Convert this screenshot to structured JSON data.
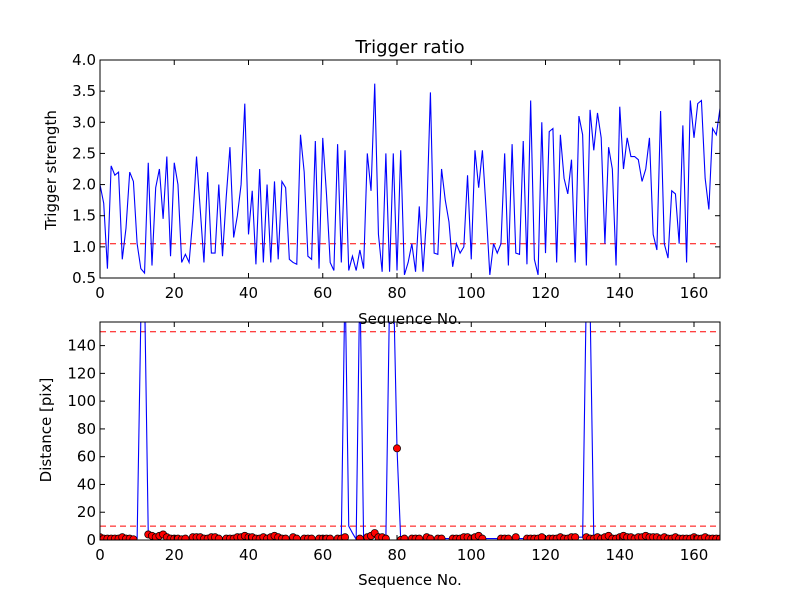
{
  "chart_data": [
    {
      "type": "line",
      "title": "Trigger ratio",
      "xlabel": "Sequence No.",
      "ylabel": "Trigger strength",
      "xlim": [
        0,
        167
      ],
      "ylim": [
        0.5,
        4.0
      ],
      "xticks": [
        0,
        20,
        40,
        60,
        80,
        100,
        120,
        140,
        160
      ],
      "yticks": [
        "0.5",
        "1.0",
        "1.5",
        "2.0",
        "2.5",
        "3.0",
        "3.5",
        "4.0"
      ],
      "grid": false,
      "line_color": "#0000ff",
      "reference_lines": [
        {
          "y": 1.05,
          "color": "#ff0000",
          "style": "dashed"
        }
      ],
      "series": [
        {
          "values": [
            2.0,
            1.7,
            0.65,
            2.3,
            2.15,
            2.2,
            0.8,
            1.3,
            2.2,
            2.05,
            1.05,
            0.65,
            0.58,
            2.35,
            0.7,
            1.95,
            2.25,
            1.45,
            2.45,
            0.85,
            2.35,
            2.0,
            0.75,
            0.88,
            0.75,
            1.45,
            2.45,
            1.6,
            0.75,
            2.2,
            0.9,
            0.9,
            2.0,
            0.85,
            1.8,
            2.6,
            1.15,
            1.5,
            2.0,
            3.3,
            1.2,
            1.9,
            0.72,
            2.25,
            0.75,
            2.0,
            0.75,
            2.05,
            0.8,
            2.05,
            1.95,
            0.8,
            0.75,
            0.72,
            2.8,
            2.2,
            0.85,
            0.8,
            2.7,
            0.65,
            2.75,
            1.85,
            0.75,
            0.62,
            2.65,
            0.75,
            2.55,
            0.62,
            0.85,
            0.62,
            0.95,
            0.65,
            2.5,
            1.9,
            3.62,
            1.2,
            0.6,
            2.5,
            0.6,
            2.5,
            0.62,
            2.55,
            0.55,
            0.75,
            1.05,
            0.6,
            1.65,
            0.6,
            1.5,
            3.48,
            0.9,
            0.88,
            2.25,
            1.75,
            1.4,
            0.68,
            1.05,
            0.9,
            1.0,
            2.15,
            0.8,
            2.55,
            1.95,
            2.55,
            1.6,
            0.55,
            1.05,
            0.9,
            1.05,
            2.5,
            0.7,
            2.65,
            0.9,
            0.88,
            2.7,
            0.72,
            3.35,
            0.8,
            0.55,
            3.0,
            0.9,
            2.85,
            2.9,
            0.75,
            2.8,
            2.1,
            1.85,
            2.4,
            0.75,
            3.1,
            2.8,
            0.7,
            3.2,
            2.55,
            3.15,
            2.75,
            1.05,
            2.6,
            2.25,
            0.7,
            3.25,
            2.25,
            2.75,
            2.45,
            2.45,
            2.4,
            2.05,
            2.25,
            2.75,
            1.2,
            0.95,
            3.18,
            1.05,
            0.82,
            1.9,
            1.85,
            1.05,
            2.95,
            0.75,
            3.35,
            2.75,
            3.3,
            3.35,
            2.1,
            1.6,
            2.9,
            2.8,
            3.22,
            3.22
          ]
        }
      ]
    },
    {
      "type": "line",
      "xlabel": "Sequence No.",
      "ylabel": "Distance [pix]",
      "xlim": [
        0,
        167
      ],
      "ylim": [
        0,
        157
      ],
      "xticks": [
        0,
        20,
        40,
        60,
        80,
        100,
        120,
        140,
        160
      ],
      "yticks": [
        0,
        20,
        40,
        60,
        80,
        100,
        120,
        140
      ],
      "grid": false,
      "line_color": "#0000ff",
      "marker_color": "#ff0000",
      "reference_lines": [
        {
          "y": 150,
          "color": "#ff0000",
          "style": "dashed"
        },
        {
          "y": 10,
          "color": "#ff0000",
          "style": "dashed"
        }
      ],
      "series": [
        {
          "values": [
            2,
            1,
            1,
            1,
            1,
            1,
            2,
            1,
            1,
            0.5,
            1,
            160,
            180,
            4,
            3,
            2,
            3,
            4,
            2,
            1,
            1,
            1,
            0.5,
            1,
            2,
            2,
            2,
            1,
            1,
            2,
            2,
            1,
            1,
            1,
            1,
            1,
            2,
            2,
            3,
            2,
            2,
            1,
            1,
            2,
            1,
            2,
            3,
            2,
            1,
            1,
            1,
            2,
            1,
            1,
            1,
            1,
            1,
            1,
            1,
            1,
            1,
            1,
            1,
            1,
            1,
            2,
            190,
            10,
            5,
            0.5,
            190,
            1,
            2,
            3,
            5,
            2,
            2,
            1,
            175,
            190,
            66,
            0,
            1,
            1,
            1,
            1,
            1,
            1,
            2,
            1,
            1,
            1,
            1,
            1,
            1,
            1,
            1,
            1,
            2,
            2,
            1,
            2,
            3,
            1,
            1,
            1,
            1,
            1,
            1,
            1,
            1,
            2,
            1,
            1,
            1,
            2,
            1,
            1,
            1,
            1,
            1,
            2,
            1,
            1,
            1,
            1,
            2,
            1,
            1,
            2,
            2,
            180,
            170,
            2,
            1,
            1,
            2,
            1,
            2,
            3,
            1,
            1,
            2,
            3,
            2,
            2,
            1,
            2,
            2,
            3,
            2,
            2,
            2,
            1,
            2,
            1,
            1,
            2,
            1,
            1,
            1,
            1,
            2,
            1,
            1,
            2,
            1,
            1,
            1,
            1,
            1
          ],
          "markers": [
            [
              0,
              2
            ],
            [
              1,
              1
            ],
            [
              2,
              1
            ],
            [
              3,
              1
            ],
            [
              4,
              1
            ],
            [
              5,
              1
            ],
            [
              6,
              2
            ],
            [
              7,
              1
            ],
            [
              8,
              1
            ],
            [
              9,
              0.5
            ],
            [
              13,
              4
            ],
            [
              14,
              3
            ],
            [
              15,
              2
            ],
            [
              16,
              3
            ],
            [
              17,
              4
            ],
            [
              18,
              2
            ],
            [
              19,
              1
            ],
            [
              20,
              1
            ],
            [
              21,
              1
            ],
            [
              22,
              0.5
            ],
            [
              23,
              1
            ],
            [
              25,
              2
            ],
            [
              26,
              2
            ],
            [
              27,
              2
            ],
            [
              28,
              1
            ],
            [
              29,
              1
            ],
            [
              30,
              2
            ],
            [
              31,
              2
            ],
            [
              32,
              1
            ],
            [
              34,
              1
            ],
            [
              35,
              1
            ],
            [
              36,
              1
            ],
            [
              37,
              2
            ],
            [
              38,
              2
            ],
            [
              39,
              3
            ],
            [
              40,
              2
            ],
            [
              41,
              2
            ],
            [
              42,
              1
            ],
            [
              43,
              1
            ],
            [
              44,
              2
            ],
            [
              45,
              1
            ],
            [
              46,
              2
            ],
            [
              47,
              3
            ],
            [
              48,
              2
            ],
            [
              49,
              1
            ],
            [
              50,
              1
            ],
            [
              52,
              2
            ],
            [
              53,
              1
            ],
            [
              55,
              1
            ],
            [
              56,
              1
            ],
            [
              57,
              1
            ],
            [
              59,
              1
            ],
            [
              60,
              1
            ],
            [
              61,
              1
            ],
            [
              62,
              1
            ],
            [
              64,
              1
            ],
            [
              65,
              1
            ],
            [
              66,
              2
            ],
            [
              70,
              1
            ],
            [
              72,
              2
            ],
            [
              73,
              3
            ],
            [
              74,
              5
            ],
            [
              75,
              2
            ],
            [
              76,
              2
            ],
            [
              77,
              1
            ],
            [
              80,
              66
            ],
            [
              81,
              0
            ],
            [
              82,
              1
            ],
            [
              84,
              1
            ],
            [
              85,
              1
            ],
            [
              86,
              1
            ],
            [
              88,
              2
            ],
            [
              89,
              1
            ],
            [
              91,
              1
            ],
            [
              92,
              1
            ],
            [
              95,
              1
            ],
            [
              96,
              1
            ],
            [
              97,
              1
            ],
            [
              98,
              2
            ],
            [
              99,
              2
            ],
            [
              100,
              1
            ],
            [
              101,
              2
            ],
            [
              102,
              3
            ],
            [
              103,
              1
            ],
            [
              108,
              1
            ],
            [
              109,
              1
            ],
            [
              110,
              1
            ],
            [
              112,
              2
            ],
            [
              115,
              1
            ],
            [
              116,
              1
            ],
            [
              117,
              1
            ],
            [
              118,
              1
            ],
            [
              119,
              2
            ],
            [
              121,
              1
            ],
            [
              122,
              1
            ],
            [
              123,
              1
            ],
            [
              124,
              2
            ],
            [
              125,
              1
            ],
            [
              126,
              1
            ],
            [
              127,
              2
            ],
            [
              128,
              2
            ],
            [
              131,
              2
            ],
            [
              132,
              1
            ],
            [
              133,
              1
            ],
            [
              134,
              2
            ],
            [
              135,
              1
            ],
            [
              136,
              2
            ],
            [
              137,
              3
            ],
            [
              138,
              1
            ],
            [
              139,
              1
            ],
            [
              140,
              2
            ],
            [
              141,
              3
            ],
            [
              142,
              2
            ],
            [
              143,
              2
            ],
            [
              144,
              1
            ],
            [
              145,
              2
            ],
            [
              146,
              2
            ],
            [
              147,
              3
            ],
            [
              148,
              2
            ],
            [
              149,
              2
            ],
            [
              150,
              2
            ],
            [
              151,
              1
            ],
            [
              152,
              2
            ],
            [
              153,
              1
            ],
            [
              154,
              1
            ],
            [
              155,
              2
            ],
            [
              156,
              1
            ],
            [
              157,
              1
            ],
            [
              158,
              1
            ],
            [
              159,
              1
            ],
            [
              160,
              2
            ],
            [
              161,
              1
            ],
            [
              162,
              1
            ],
            [
              163,
              2
            ],
            [
              164,
              1
            ],
            [
              165,
              1
            ],
            [
              166,
              1
            ],
            [
              167,
              1
            ]
          ]
        }
      ]
    }
  ]
}
